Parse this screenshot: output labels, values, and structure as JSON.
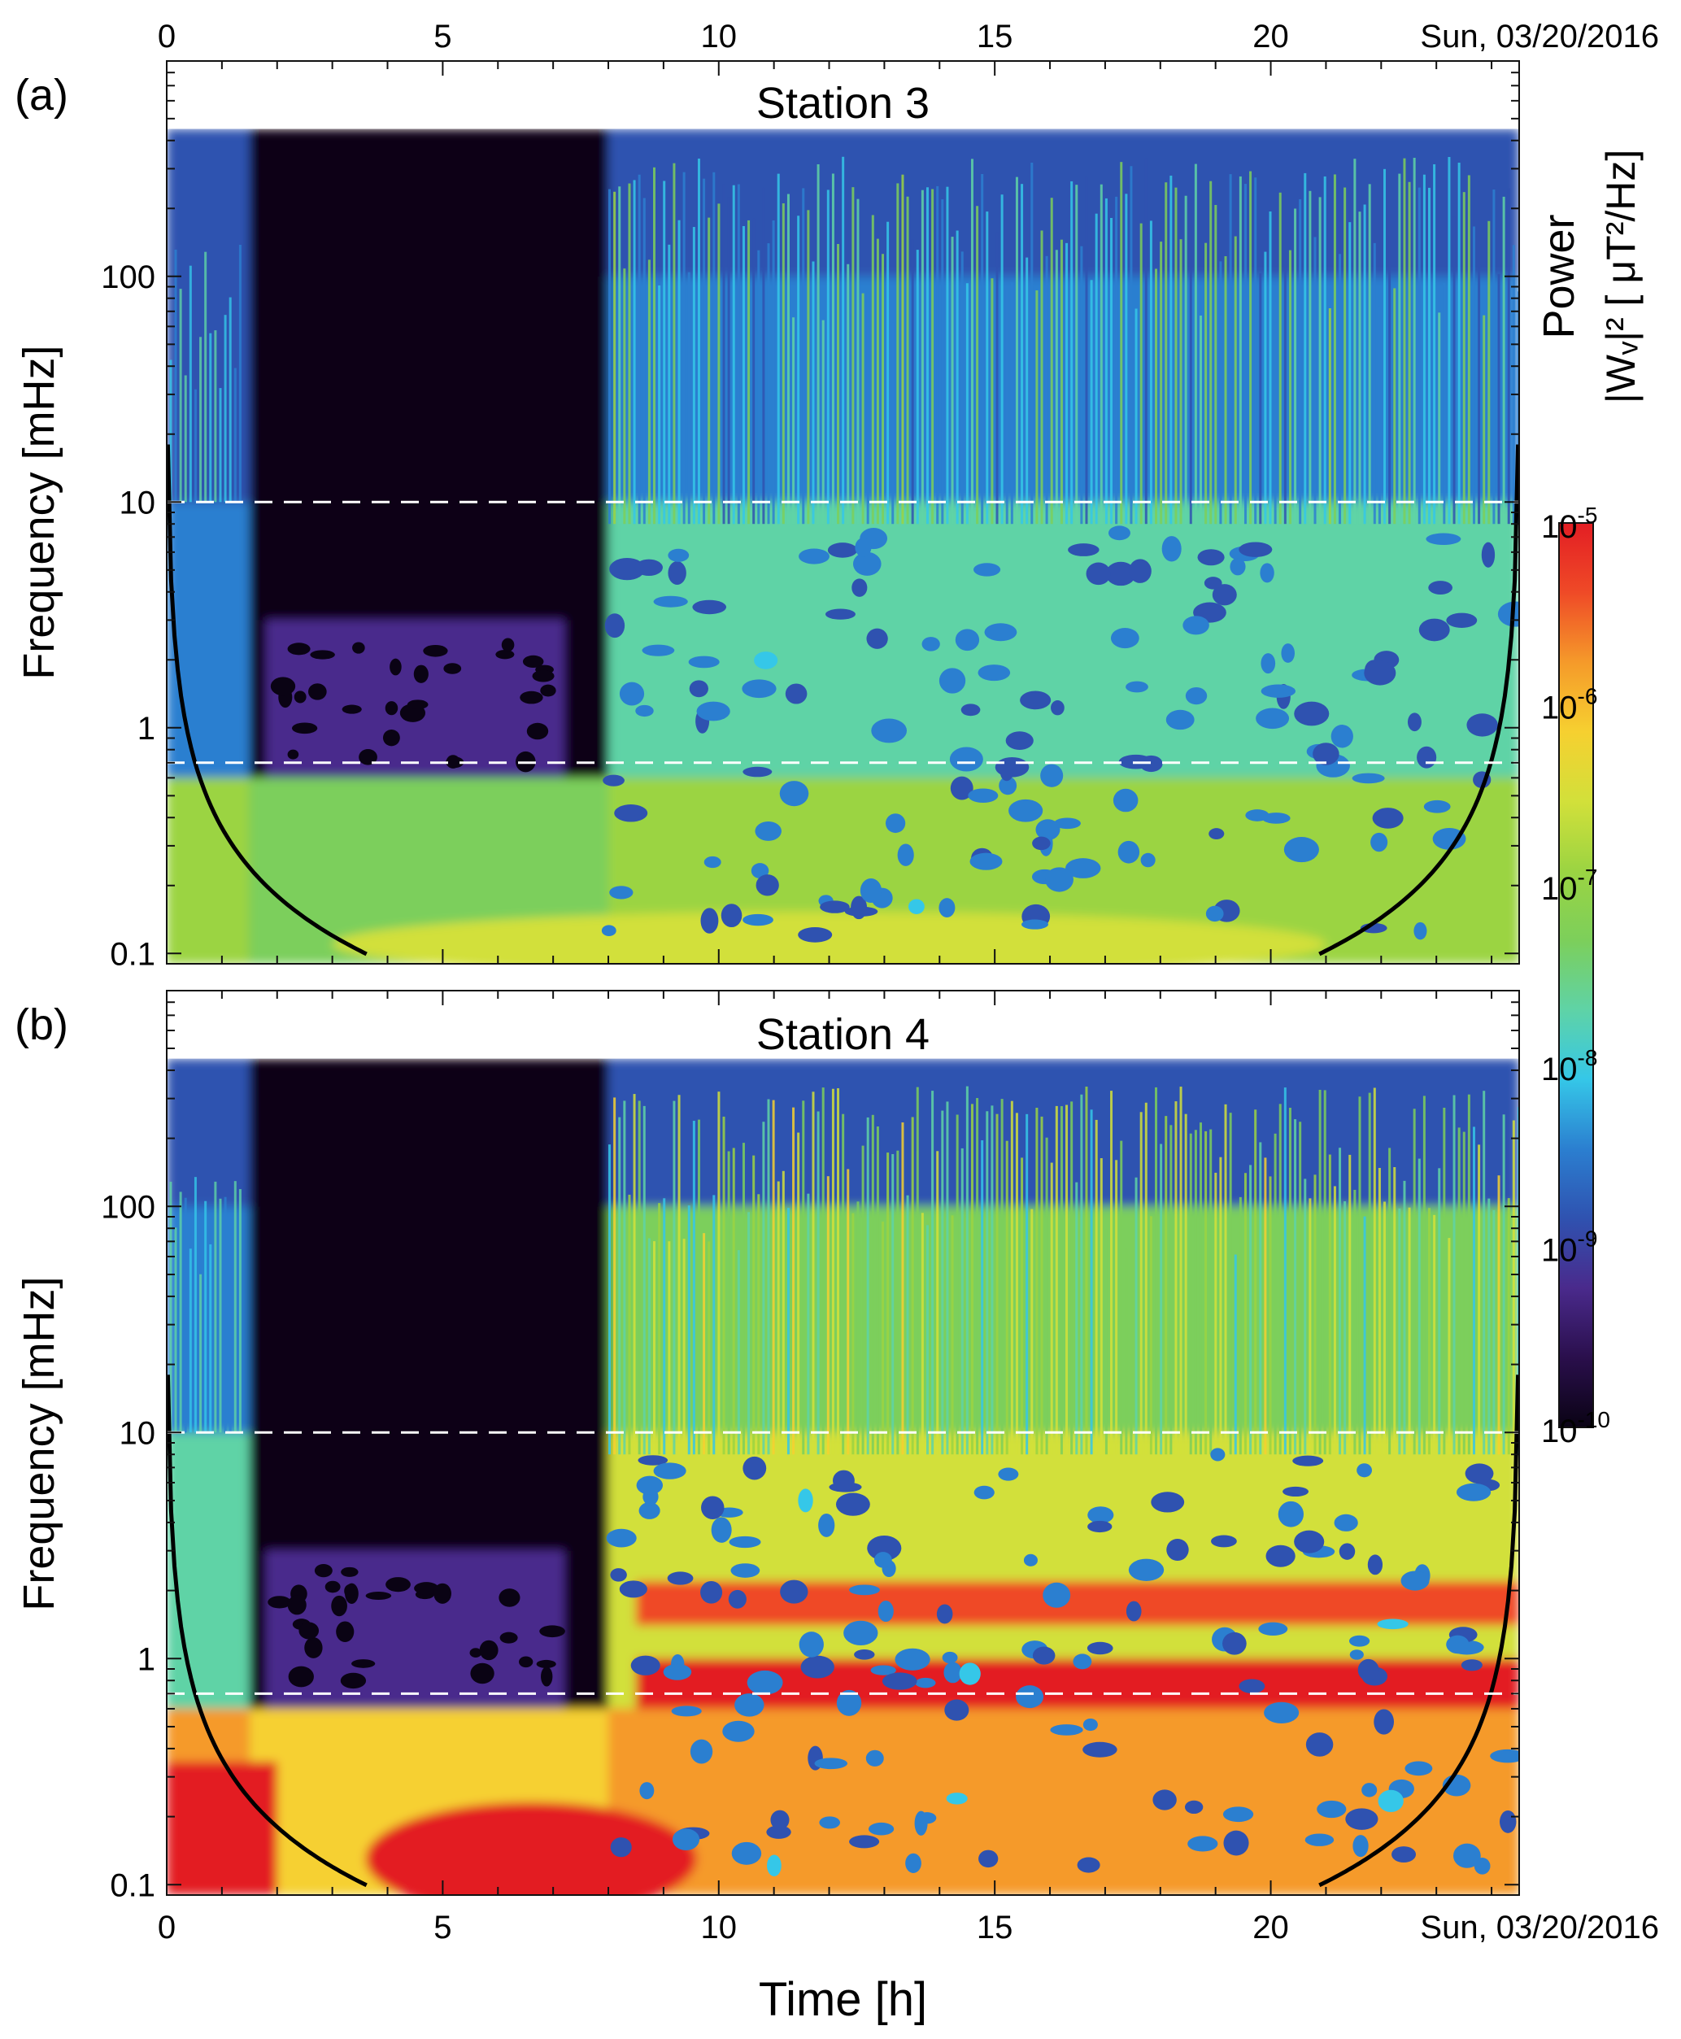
{
  "figure": {
    "xlabel": "Time [h]",
    "date_label": "Sun, 03/20/2016",
    "colorbar": {
      "label_line1": "Power",
      "label_line2": "|Wᵥ|² [ μT²/Hz]",
      "ticks": [
        {
          "base": "10",
          "exp": "-5"
        },
        {
          "base": "10",
          "exp": "-6"
        },
        {
          "base": "10",
          "exp": "-7"
        },
        {
          "base": "10",
          "exp": "-8"
        },
        {
          "base": "10",
          "exp": "-9"
        },
        {
          "base": "10",
          "exp": "-10"
        }
      ],
      "colors": [
        "#0a0314",
        "#2a0f4c",
        "#4a2a8c",
        "#2f52b0",
        "#2b7fd0",
        "#35c7e8",
        "#5fd3a6",
        "#7ccf5b",
        "#9bd442",
        "#d2e03a",
        "#f6d030",
        "#f59a2a",
        "#ef4a27",
        "#e31e24"
      ]
    }
  },
  "chart_data": [
    {
      "type": "heatmap",
      "panel": "(a)",
      "title": "Station 3",
      "xlabel": "Time [h]",
      "ylabel": "Frequency [mHz]",
      "x_ticks": [
        0,
        5,
        10,
        15,
        20
      ],
      "y_ticks": [
        "0.1",
        "1",
        "10",
        "100"
      ],
      "xlim": [
        0,
        24.5
      ],
      "ylim_mHz": [
        0.09,
        900
      ],
      "y_scale": "log",
      "date_label": "Sun, 03/20/2016",
      "dashed_lines_mHz": [
        10,
        0.7
      ],
      "cone_of_influence": true,
      "power_range": [
        "1e-10",
        "1e-5"
      ],
      "power_units": "μT²/Hz",
      "quiet_interval_h": [
        1.5,
        8.0
      ],
      "low_freq_power_level": "1e-7",
      "mid_freq_power_level": "1e-8"
    },
    {
      "type": "heatmap",
      "panel": "(b)",
      "title": "Station 4",
      "xlabel": "Time [h]",
      "ylabel": "Frequency [mHz]",
      "x_ticks": [
        0,
        5,
        10,
        15,
        20
      ],
      "y_ticks": [
        "0.1",
        "1",
        "10",
        "100"
      ],
      "xlim": [
        0,
        24.5
      ],
      "ylim_mHz": [
        0.09,
        900
      ],
      "y_scale": "log",
      "date_label": "Sun, 03/20/2016",
      "dashed_lines_mHz": [
        10,
        0.7
      ],
      "cone_of_influence": true,
      "power_range": [
        "1e-10",
        "1e-5"
      ],
      "power_units": "μT²/Hz",
      "quiet_interval_h": [
        1.5,
        8.0
      ],
      "low_freq_power_level": "1e-6",
      "mid_freq_power_level": "1e-7"
    }
  ]
}
